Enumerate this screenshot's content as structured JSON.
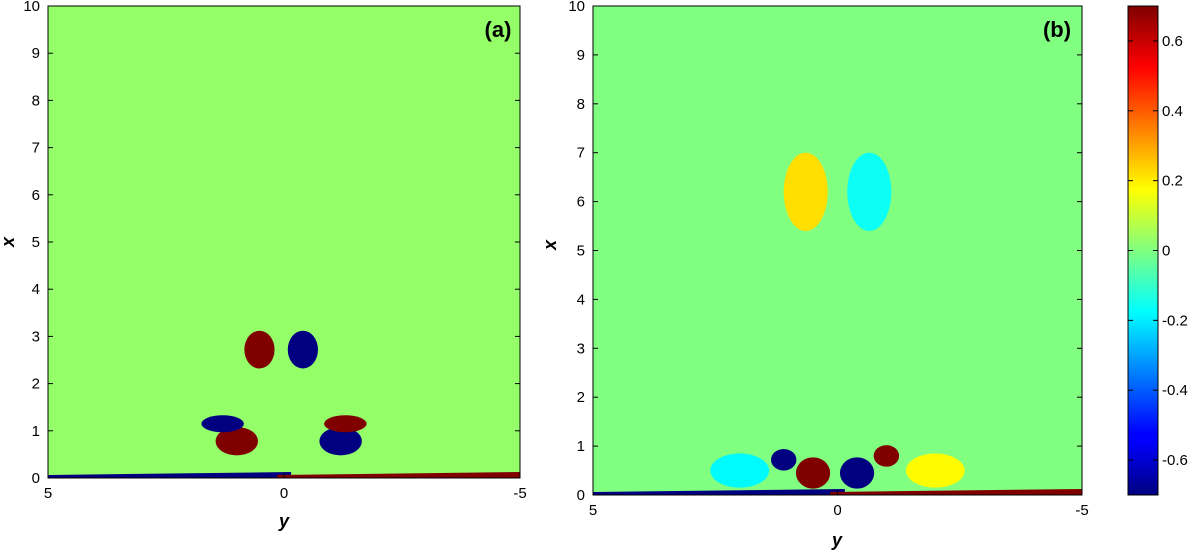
{
  "chart_data": [
    {
      "type": "heatmap",
      "panel_label": "(a)",
      "xlabel": "y",
      "ylabel": "x",
      "xlim": [
        5,
        -5
      ],
      "ylim": [
        0,
        10
      ],
      "x_ticks": [
        "5",
        "0",
        "-5"
      ],
      "y_ticks": [
        "0",
        "1",
        "2",
        "3",
        "4",
        "5",
        "6",
        "7",
        "8",
        "9",
        "10"
      ],
      "background_value": 0.03,
      "features": [
        {
          "kind": "vortex",
          "y": 0.52,
          "x": 2.72,
          "value": 0.7,
          "size_y": 0.32,
          "size_x": 0.4
        },
        {
          "kind": "vortex",
          "y": -0.4,
          "x": 2.72,
          "value": -0.7,
          "size_y": 0.32,
          "size_x": 0.4
        },
        {
          "kind": "vortex",
          "y": 1.0,
          "x": 0.78,
          "value": 0.7,
          "size_y": 0.45,
          "size_x": 0.3
        },
        {
          "kind": "vortex",
          "y": -1.2,
          "x": 0.78,
          "value": -0.7,
          "size_y": 0.45,
          "size_x": 0.3
        },
        {
          "kind": "vortex",
          "y": 1.3,
          "x": 1.15,
          "value": -0.7,
          "size_y": 0.45,
          "size_x": 0.18
        },
        {
          "kind": "vortex",
          "y": -1.3,
          "x": 1.15,
          "value": 0.7,
          "size_y": 0.45,
          "size_x": 0.18
        },
        {
          "kind": "boundary-layer",
          "side": "positive-y",
          "value": -0.7
        },
        {
          "kind": "boundary-layer",
          "side": "negative-y",
          "value": 0.7
        }
      ]
    },
    {
      "type": "heatmap",
      "panel_label": "(b)",
      "xlabel": "y",
      "ylabel": "x",
      "xlim": [
        5,
        -5
      ],
      "ylim": [
        0,
        10
      ],
      "x_ticks": [
        "5",
        "0",
        "-5"
      ],
      "y_ticks": [
        "0",
        "1",
        "2",
        "3",
        "4",
        "5",
        "6",
        "7",
        "8",
        "9",
        "10"
      ],
      "background_value": 0.0,
      "features": [
        {
          "kind": "vortex",
          "y": 0.65,
          "x": 6.2,
          "value": 0.22,
          "size_y": 0.45,
          "size_x": 0.8
        },
        {
          "kind": "vortex",
          "y": -0.65,
          "x": 6.2,
          "value": -0.16,
          "size_y": 0.45,
          "size_x": 0.8
        },
        {
          "kind": "vortex",
          "y": 1.1,
          "x": 0.72,
          "value": -0.7,
          "size_y": 0.26,
          "size_x": 0.22
        },
        {
          "kind": "vortex",
          "y": -1.0,
          "x": 0.8,
          "value": 0.7,
          "size_y": 0.26,
          "size_x": 0.22
        },
        {
          "kind": "vortex",
          "y": 0.5,
          "x": 0.45,
          "value": 0.7,
          "size_y": 0.35,
          "size_x": 0.32
        },
        {
          "kind": "vortex",
          "y": -0.4,
          "x": 0.45,
          "value": -0.7,
          "size_y": 0.35,
          "size_x": 0.32
        },
        {
          "kind": "vortex",
          "y": 2.0,
          "x": 0.5,
          "value": -0.18,
          "size_y": 0.6,
          "size_x": 0.35
        },
        {
          "kind": "vortex",
          "y": -2.0,
          "x": 0.5,
          "value": 0.18,
          "size_y": 0.6,
          "size_x": 0.35
        },
        {
          "kind": "boundary-layer",
          "side": "positive-y",
          "value": -0.7
        },
        {
          "kind": "boundary-layer",
          "side": "negative-y",
          "value": 0.7
        }
      ]
    }
  ],
  "colorbar": {
    "colormap": "jet",
    "range": [
      -0.7,
      0.7
    ],
    "ticks": [
      "0.6",
      "0.4",
      "0.2",
      "0",
      "-0.2",
      "-0.4",
      "-0.6"
    ],
    "tick_values": [
      0.6,
      0.4,
      0.2,
      0,
      -0.2,
      -0.4,
      -0.6
    ]
  }
}
